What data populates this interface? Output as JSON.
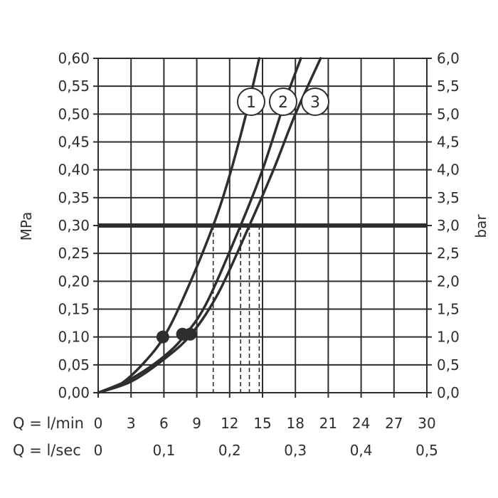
{
  "chart_data": {
    "type": "line",
    "title": "",
    "left_axis": {
      "label": "MPa",
      "ylim": [
        0,
        0.6
      ],
      "ticks": [
        0,
        0.05,
        0.1,
        0.15,
        0.2,
        0.25,
        0.3,
        0.35,
        0.4,
        0.45,
        0.5,
        0.55,
        0.6
      ],
      "tick_labels": [
        "0,00",
        "0,05",
        "0,10",
        "0,15",
        "0,20",
        "0,25",
        "0,30",
        "0,35",
        "0,40",
        "0,45",
        "0,50",
        "0,55",
        "0,60"
      ]
    },
    "right_axis": {
      "label": "bar",
      "ylim": [
        0,
        6
      ],
      "tick_labels": [
        "0,0",
        "0,5",
        "1,0",
        "1,5",
        "2,0",
        "2,5",
        "3,0",
        "3,5",
        "4,0",
        "4,5",
        "5,0",
        "5,5",
        "6,0"
      ]
    },
    "x_axis": {
      "label": "Q = l/min",
      "xlim": [
        0,
        30
      ],
      "ticks": [
        0,
        3,
        6,
        9,
        12,
        15,
        18,
        21,
        24,
        27,
        30
      ],
      "tick_labels": [
        "0",
        "3",
        "6",
        "9",
        "12",
        "15",
        "18",
        "21",
        "24",
        "27",
        "30"
      ]
    },
    "x_axis_secondary": {
      "label": "Q = l/sec",
      "ticks": [
        0,
        6,
        12,
        18,
        24,
        30
      ],
      "tick_labels": [
        "0",
        "0,1",
        "0,2",
        "0,3",
        "0,4",
        "0,5"
      ]
    },
    "grid": true,
    "series": [
      {
        "name": "1",
        "x": [
          0,
          2,
          4,
          6,
          8,
          10.5,
          12,
          13.5,
          14.7
        ],
        "y": [
          0,
          0.015,
          0.05,
          0.1,
          0.18,
          0.3,
          0.39,
          0.5,
          0.6
        ],
        "marker": {
          "x": 5.9,
          "y": 0.1
        }
      },
      {
        "name": "2",
        "x": [
          0,
          3,
          6,
          8,
          10,
          13,
          15,
          17,
          18.5
        ],
        "y": [
          0,
          0.025,
          0.065,
          0.105,
          0.165,
          0.3,
          0.4,
          0.52,
          0.6
        ],
        "marker": {
          "x": 7.7,
          "y": 0.105
        }
      },
      {
        "name": "3",
        "x": [
          0,
          3,
          6,
          8.5,
          11,
          13.8,
          16,
          18,
          20.3
        ],
        "y": [
          0,
          0.02,
          0.06,
          0.105,
          0.18,
          0.3,
          0.4,
          0.5,
          0.6
        ],
        "marker": {
          "x": 8.4,
          "y": 0.105
        }
      }
    ],
    "reference_line": {
      "y": 0.3
    },
    "dashed_drops": [
      10.5,
      12,
      13,
      13.8,
      14.7
    ]
  }
}
